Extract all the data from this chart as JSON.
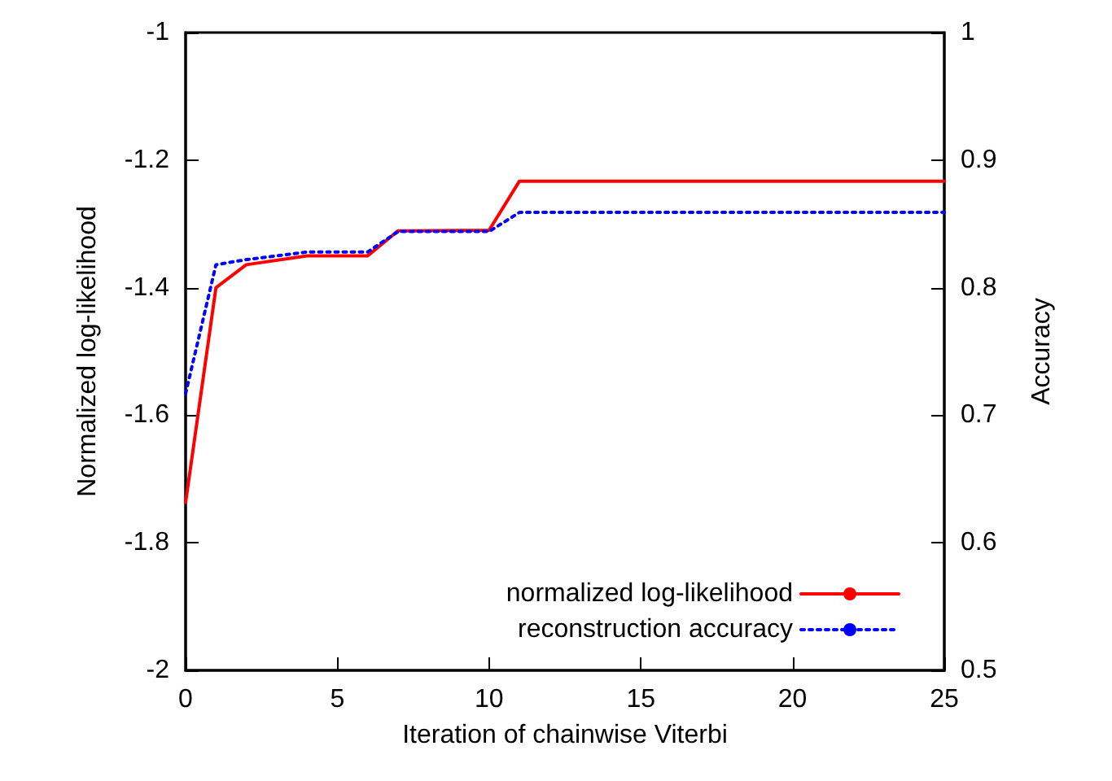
{
  "chart_data": {
    "type": "line",
    "xlabel": "Iteration of chainwise Viterbi",
    "ylabel": "Normalized log-likelihood",
    "y2label": "Accuracy",
    "xlim": [
      0,
      25
    ],
    "xticks": [
      0,
      5,
      10,
      15,
      20,
      25
    ],
    "ylim": [
      -2,
      -1
    ],
    "yticks": [
      -2,
      -1.8,
      -1.6,
      -1.4,
      -1.2,
      -1
    ],
    "y2lim": [
      0.5,
      1
    ],
    "y2ticks": [
      0.5,
      0.6,
      0.7,
      0.8,
      0.9,
      1
    ],
    "grid": false,
    "legend": "bottom right",
    "marker": "none",
    "series": [
      {
        "name": "normalized log-likelihood",
        "color": "#ff0000",
        "line_style": "solid",
        "x": [
          0,
          1,
          2,
          4,
          6,
          7,
          10,
          11,
          25
        ],
        "values": [
          -1.737,
          -1.4,
          -1.364,
          -1.35,
          -1.35,
          -1.311,
          -1.31,
          -1.233,
          -1.233
        ]
      },
      {
        "name": "reconstruction accuracy",
        "color": "#0000ff",
        "line_style": "dotted",
        "axis": "y2",
        "x": [
          0,
          1,
          2,
          4,
          6,
          7,
          10,
          11,
          25
        ],
        "values": [
          0.717,
          0.818,
          0.822,
          0.828,
          0.828,
          0.844,
          0.844,
          0.859,
          0.859
        ]
      }
    ]
  }
}
